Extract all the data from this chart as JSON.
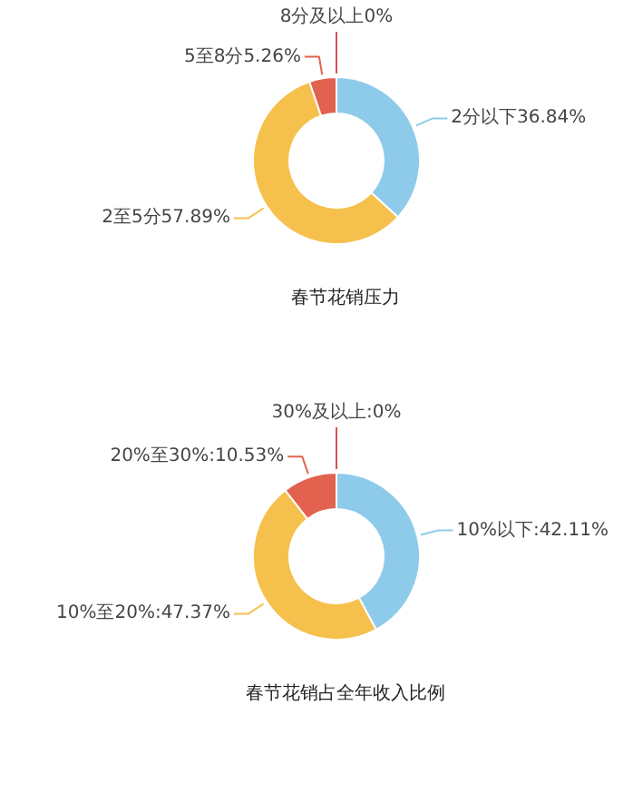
{
  "chart_data": [
    {
      "type": "donut",
      "title": "春节花销压力",
      "categories": [
        "2分以下",
        "2至5分",
        "5至8分",
        "8分及以上"
      ],
      "values": [
        36.84,
        57.89,
        5.26,
        0
      ],
      "value_labels": [
        "36.84%",
        "57.89%",
        "5.26%",
        "0%"
      ],
      "colors": [
        "#8ecbea",
        "#f6c04c",
        "#e2624f",
        "#d9534f"
      ]
    },
    {
      "type": "donut",
      "title": "春节花销占全年收入比例",
      "categories": [
        "10%以下",
        "10%至20%",
        "20%至30%",
        "30%及以上"
      ],
      "values": [
        42.11,
        47.37,
        10.53,
        0
      ],
      "value_labels": [
        ":42.11%",
        ":47.37%",
        ":10.53%",
        ":0%"
      ],
      "colors": [
        "#8ecbea",
        "#f6c04c",
        "#e2624f",
        "#d9534f"
      ]
    }
  ]
}
